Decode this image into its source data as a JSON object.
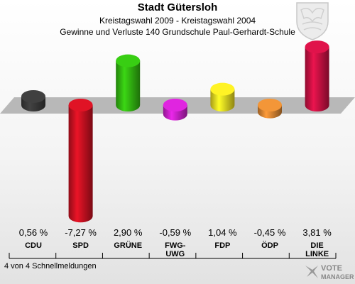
{
  "header": {
    "title": "Stadt Gütersloh",
    "subtitle": "Kreistagswahl 2009 - Kreistagswahl 2004",
    "caption": "Gewinne und Verluste 140 Grundschule Paul-Gerhardt-Schule"
  },
  "footer": {
    "note": "4 von 4 Schnellmeldungen"
  },
  "brand": {
    "line1": "VOTE",
    "line2": "MANAGER"
  },
  "chart_data": {
    "type": "bar",
    "title": "Gewinne und Verluste 140 Grundschule Paul-Gerhardt-Schule",
    "categories": [
      "CDU",
      "SPD",
      "GRÜNE",
      "FWG-\nUWG",
      "FDP",
      "ÖDP",
      "DIE\nLINKE"
    ],
    "values": [
      0.56,
      -7.27,
      2.9,
      -0.59,
      1.04,
      -0.45,
      3.81
    ],
    "value_labels": [
      "0,56 %",
      "-7,27 %",
      "2,90 %",
      "-0,59 %",
      "1,04 %",
      "-0,45 %",
      "3,81 %"
    ],
    "colors": [
      "#3a3a3a",
      "#cc1122",
      "#33bb11",
      "#cc22cc",
      "#eedd22",
      "#dd8833",
      "#cc1144"
    ],
    "unit": "%"
  }
}
